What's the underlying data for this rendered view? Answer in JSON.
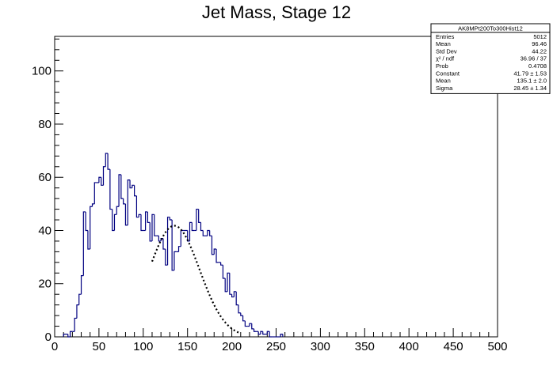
{
  "chart_data": {
    "type": "bar",
    "title": "Jet Mass, Stage 12",
    "xlabel": "",
    "ylabel": "",
    "xlim": [
      0,
      500
    ],
    "ylim": [
      0,
      113
    ],
    "x_ticks": [
      "0",
      "50",
      "100",
      "150",
      "200",
      "250",
      "300",
      "350",
      "400",
      "450",
      "500"
    ],
    "y_ticks": [
      "0",
      "20",
      "40",
      "60",
      "80",
      "100"
    ],
    "bin_width": 2.5,
    "histogram_color": "#000080",
    "fit_color": "#000000",
    "series": [
      {
        "style": "histogram-step",
        "bin_start": 10,
        "values": [
          1,
          1,
          0,
          2,
          2,
          7,
          12,
          16,
          23,
          47,
          40,
          33,
          49,
          50,
          58,
          58,
          60,
          57,
          64,
          69,
          63,
          48,
          40,
          46,
          49,
          61,
          52,
          50,
          42,
          59,
          56,
          57,
          53,
          45,
          46,
          40,
          40,
          47,
          43,
          36,
          46,
          38,
          38,
          36,
          37,
          33,
          27,
          45,
          44,
          25,
          32,
          32,
          34,
          40,
          40,
          40,
          36,
          43,
          40,
          40,
          48,
          43,
          40,
          38,
          38,
          40,
          38,
          31,
          33,
          28,
          28,
          27,
          22,
          17,
          24,
          16,
          15,
          17,
          12,
          9,
          8,
          6,
          4,
          4,
          5,
          3,
          2,
          2,
          1,
          2,
          1,
          1,
          2,
          0,
          0,
          0,
          0,
          0,
          1
        ]
      },
      {
        "style": "gaussian-fit-dotted",
        "function": "Constant*exp(-0.5*((x-Mean)/Sigma)^2)",
        "constant": 41.79,
        "mean": 135.1,
        "sigma": 28.45,
        "x_range": [
          110,
          210
        ]
      }
    ],
    "stats_box": {
      "title": "AK8MPt200To300Hist12",
      "rows": [
        {
          "label": "Entries",
          "value": "5012"
        },
        {
          "label": "Mean",
          "value": "96.46"
        },
        {
          "label": "Std Dev",
          "value": "44.22"
        },
        {
          "label": "χ² / ndf",
          "value": "36.96 / 37"
        },
        {
          "label": "Prob",
          "value": "0.4708"
        },
        {
          "label": "Constant",
          "value": "41.79 ± 1.53"
        },
        {
          "label": "Mean",
          "value": "135.1 ± 2.0"
        },
        {
          "label": "Sigma",
          "value": "28.45 ± 1.34"
        }
      ]
    }
  }
}
